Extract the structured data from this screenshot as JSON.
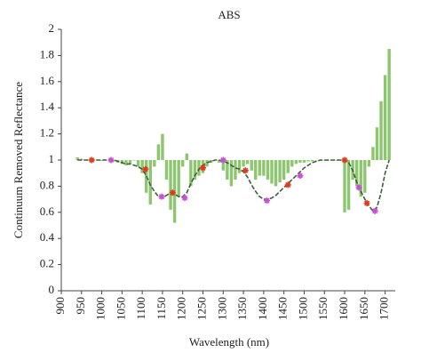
{
  "chart_data": {
    "type": "line",
    "title": "ABS",
    "xlabel": "Wavelength (nm)",
    "ylabel": "Continuum Removed Reflectance",
    "xlim": [
      900,
      1725
    ],
    "xticks": [
      900,
      950,
      1000,
      1050,
      1100,
      1150,
      1200,
      1250,
      1300,
      1350,
      1400,
      1450,
      1500,
      1550,
      1600,
      1650,
      1700
    ],
    "ylim": [
      0,
      2
    ],
    "yticks": [
      0,
      0.2,
      0.4,
      0.6,
      0.8,
      1,
      1.2,
      1.4,
      1.6,
      1.8,
      2
    ],
    "series": [
      {
        "type": "bar",
        "color": "#8cc66e",
        "base": 1,
        "x": [
          940,
          950,
          960,
          970,
          980,
          990,
          1000,
          1010,
          1020,
          1030,
          1040,
          1050,
          1060,
          1070,
          1080,
          1090,
          1100,
          1110,
          1120,
          1130,
          1140,
          1150,
          1160,
          1170,
          1180,
          1190,
          1200,
          1210,
          1220,
          1230,
          1240,
          1250,
          1260,
          1270,
          1280,
          1290,
          1300,
          1310,
          1320,
          1330,
          1340,
          1350,
          1360,
          1370,
          1380,
          1390,
          1400,
          1410,
          1420,
          1430,
          1440,
          1450,
          1460,
          1470,
          1480,
          1490,
          1500,
          1510,
          1520,
          1530,
          1540,
          1550,
          1560,
          1570,
          1580,
          1590,
          1600,
          1610,
          1620,
          1630,
          1640,
          1650,
          1660,
          1670,
          1680,
          1690,
          1700,
          1710
        ],
        "values": [
          1.02,
          1.01,
          1.0,
          1.0,
          1.0,
          1.0,
          1.0,
          1.0,
          1.0,
          0.99,
          0.98,
          0.97,
          0.96,
          0.97,
          1.0,
          0.95,
          0.9,
          0.75,
          0.66,
          0.95,
          1.12,
          1.2,
          0.85,
          0.62,
          0.52,
          0.72,
          0.95,
          1.05,
          0.8,
          0.85,
          0.88,
          0.9,
          0.95,
          0.98,
          1.0,
          0.98,
          0.92,
          0.85,
          0.8,
          0.85,
          0.9,
          0.95,
          0.97,
          0.92,
          0.85,
          0.88,
          0.88,
          0.85,
          0.82,
          0.8,
          0.83,
          0.85,
          0.9,
          0.95,
          0.97,
          0.98,
          0.98,
          0.99,
          0.99,
          1.0,
          1.0,
          1.0,
          1.0,
          1.0,
          1.0,
          1.0,
          0.6,
          0.62,
          0.85,
          0.8,
          0.72,
          0.75,
          0.95,
          1.1,
          1.25,
          1.45,
          1.65,
          1.85
        ]
      },
      {
        "type": "line",
        "color": "#3d5e3d",
        "dashed": true,
        "x": [
          940,
          950,
          960,
          970,
          980,
          990,
          1000,
          1010,
          1020,
          1030,
          1040,
          1050,
          1060,
          1070,
          1080,
          1090,
          1100,
          1110,
          1120,
          1130,
          1140,
          1150,
          1160,
          1170,
          1180,
          1190,
          1200,
          1210,
          1220,
          1230,
          1240,
          1250,
          1260,
          1270,
          1280,
          1290,
          1300,
          1310,
          1320,
          1330,
          1340,
          1350,
          1360,
          1370,
          1380,
          1390,
          1400,
          1410,
          1420,
          1430,
          1440,
          1450,
          1460,
          1470,
          1480,
          1490,
          1500,
          1510,
          1520,
          1530,
          1540,
          1550,
          1560,
          1570,
          1580,
          1590,
          1600,
          1610,
          1620,
          1630,
          1640,
          1650,
          1660,
          1670,
          1680,
          1690,
          1700,
          1710
        ],
        "values": [
          1.0,
          1.0,
          1.0,
          1.0,
          1.0,
          1.0,
          1.0,
          1.0,
          1.0,
          1.0,
          0.99,
          0.98,
          0.97,
          0.97,
          0.96,
          0.95,
          0.93,
          0.88,
          0.81,
          0.76,
          0.72,
          0.71,
          0.73,
          0.75,
          0.74,
          0.72,
          0.72,
          0.75,
          0.82,
          0.88,
          0.93,
          0.96,
          0.98,
          0.99,
          1.0,
          1.0,
          0.99,
          0.98,
          0.96,
          0.94,
          0.93,
          0.91,
          0.87,
          0.81,
          0.76,
          0.72,
          0.7,
          0.7,
          0.71,
          0.73,
          0.76,
          0.79,
          0.82,
          0.85,
          0.88,
          0.91,
          0.94,
          0.96,
          0.98,
          0.99,
          1.0,
          1.0,
          1.0,
          1.0,
          1.0,
          1.0,
          1.0,
          0.98,
          0.92,
          0.83,
          0.76,
          0.7,
          0.65,
          0.61,
          0.64,
          0.75,
          0.9,
          1.0
        ]
      },
      {
        "type": "scatter",
        "color": "#e03a1e",
        "x": [
          975,
          1108,
          1175,
          1250,
          1355,
          1460,
          1600,
          1655
        ],
        "values": [
          1.0,
          0.93,
          0.75,
          0.94,
          0.92,
          0.81,
          1.0,
          0.67
        ]
      },
      {
        "type": "scatter",
        "color": "#c94fd6",
        "x": [
          1023,
          1148,
          1205,
          1300,
          1408,
          1490,
          1635,
          1675
        ],
        "values": [
          1.0,
          0.72,
          0.71,
          1.0,
          0.69,
          0.88,
          0.79,
          0.61
        ]
      }
    ]
  }
}
